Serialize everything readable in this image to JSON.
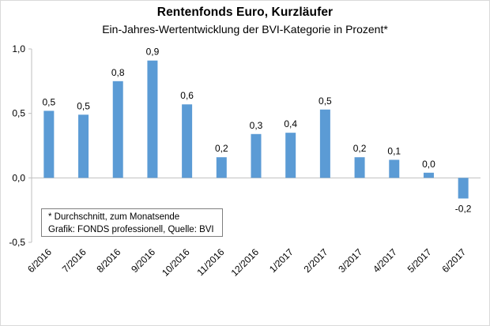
{
  "chart_data": {
    "type": "bar",
    "title": "Rentenfonds Euro, Kurzläufer",
    "subtitle": "Ein-Jahres-Wertentwicklung der BVI-Kategorie in Prozent*",
    "xlabel": "",
    "ylabel": "",
    "categories": [
      "6/2016",
      "7/2016",
      "8/2016",
      "9/2016",
      "10/2016",
      "11/2016",
      "12/2016",
      "1/2017",
      "2/2017",
      "3/2017",
      "4/2017",
      "5/2017",
      "6/2017"
    ],
    "values": [
      0.52,
      0.49,
      0.75,
      0.91,
      0.57,
      0.16,
      0.34,
      0.35,
      0.53,
      0.16,
      0.14,
      0.04,
      -0.16
    ],
    "data_labels": [
      "0,5",
      "0,5",
      "0,8",
      "0,9",
      "0,6",
      "0,2",
      "0,3",
      "0,4",
      "0,5",
      "0,2",
      "0,1",
      "0,0",
      "-0,2"
    ],
    "ylim": [
      -0.5,
      1.0
    ],
    "yticks": [
      1.0,
      0.5,
      0.0,
      -0.5
    ],
    "ytick_labels": [
      "1,0",
      "0,5",
      "0,0",
      "-0,5"
    ],
    "grid": false,
    "legend": "none",
    "bar_color": "#5b9bd5",
    "footnote": {
      "line1": "* Durchschnitt, zum Monatsende",
      "line2": "Grafik: FONDS professionell, Quelle: BVI"
    }
  }
}
